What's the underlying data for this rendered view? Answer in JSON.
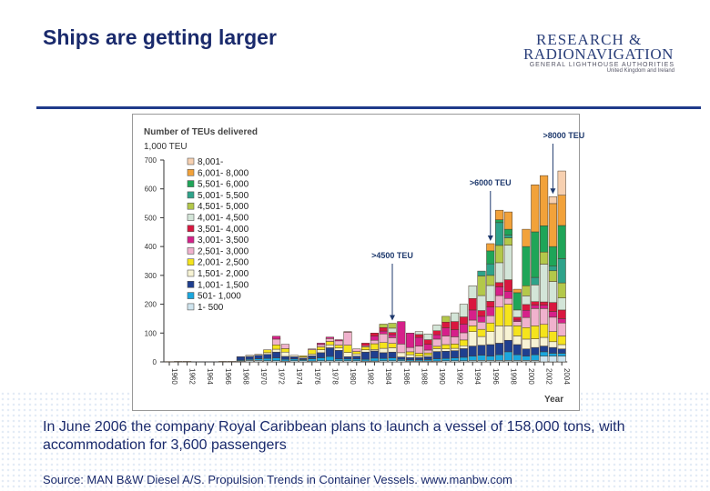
{
  "slide": {
    "title": "Ships are getting larger",
    "logo": {
      "line1": "RESEARCH &",
      "line2": "RADIONAVIGATION",
      "line3": "GENERAL LIGHTHOUSE AUTHORITIES",
      "line4": "United Kingdom and Ireland"
    },
    "body": "In June 2006 the company Royal Caribbean plans to launch a vessel of 158,000 tons, with accommodation for 3,600 passengers",
    "source": "Source: MAN B&W Diesel A/S.  Propulsion Trends in Container Vessels.  www.manbw.com"
  },
  "chart_data": {
    "type": "bar",
    "stacked": true,
    "title": "Number of TEUs delivered",
    "ylabel": "1,000 TEU",
    "xlabel": "Year",
    "ylim": [
      0,
      700
    ],
    "yticks": [
      0,
      100,
      200,
      300,
      400,
      500,
      600,
      700
    ],
    "xtick_labels": [
      "1960",
      "1962",
      "1964",
      "1966",
      "1968",
      "1970",
      "1972",
      "1974",
      "1976",
      "1978",
      "1980",
      "1982",
      "1984",
      "1986",
      "1988",
      "1990",
      "1992",
      "1994",
      "1996",
      "1998",
      "2000",
      "2002",
      "2004"
    ],
    "legend_position": "top-left",
    "grid": false,
    "years": [
      1960,
      1961,
      1962,
      1963,
      1964,
      1965,
      1966,
      1967,
      1968,
      1969,
      1970,
      1971,
      1972,
      1973,
      1974,
      1975,
      1976,
      1977,
      1978,
      1979,
      1980,
      1981,
      1982,
      1983,
      1984,
      1985,
      1986,
      1987,
      1988,
      1989,
      1990,
      1991,
      1992,
      1993,
      1994,
      1995,
      1996,
      1997,
      1998,
      1999,
      2000,
      2001,
      2002,
      2003,
      2004
    ],
    "series": [
      {
        "name": "1-   500",
        "color": "#cfe4ee",
        "values": [
          1,
          2,
          2,
          0,
          0,
          0,
          2,
          2,
          3,
          5,
          5,
          4,
          4,
          3,
          4,
          4,
          3,
          4,
          4,
          4,
          4,
          4,
          3,
          3,
          4,
          4,
          4,
          3,
          3,
          3,
          3,
          4,
          4,
          4,
          5,
          5,
          5,
          5,
          5,
          5,
          5,
          5,
          20,
          20,
          20
        ]
      },
      {
        "name": "501- 1,000",
        "color": "#1aa7de",
        "values": [
          0,
          0,
          0,
          0,
          0,
          0,
          0,
          0,
          3,
          4,
          6,
          8,
          10,
          6,
          6,
          4,
          8,
          10,
          15,
          6,
          6,
          6,
          6,
          10,
          8,
          10,
          5,
          4,
          4,
          5,
          8,
          8,
          10,
          12,
          15,
          18,
          15,
          20,
          30,
          20,
          15,
          20,
          15,
          10,
          10
        ]
      },
      {
        "name": "1,001- 1,500",
        "color": "#1f3f8f",
        "values": [
          0,
          0,
          0,
          0,
          0,
          0,
          0,
          0,
          12,
          10,
          12,
          14,
          20,
          10,
          8,
          5,
          10,
          18,
          30,
          30,
          8,
          10,
          25,
          25,
          20,
          20,
          8,
          8,
          8,
          10,
          25,
          25,
          25,
          30,
          35,
          35,
          40,
          40,
          40,
          35,
          25,
          25,
          20,
          20,
          15
        ]
      },
      {
        "name": "1,501- 2,000",
        "color": "#f7f3d4",
        "values": [
          0,
          0,
          0,
          0,
          0,
          0,
          0,
          0,
          0,
          4,
          3,
          6,
          10,
          15,
          5,
          4,
          6,
          10,
          10,
          8,
          15,
          8,
          8,
          5,
          15,
          15,
          15,
          10,
          5,
          5,
          10,
          8,
          8,
          10,
          50,
          30,
          45,
          60,
          50,
          30,
          34,
          30,
          30,
          20,
          15
        ]
      },
      {
        "name": "2,001- 2,500",
        "color": "#f5e41c",
        "values": [
          0,
          0,
          0,
          0,
          0,
          0,
          0,
          0,
          0,
          0,
          0,
          10,
          15,
          12,
          0,
          4,
          15,
          10,
          12,
          10,
          25,
          8,
          10,
          20,
          20,
          15,
          0,
          10,
          10,
          8,
          8,
          15,
          15,
          20,
          20,
          25,
          30,
          65,
          75,
          35,
          40,
          45,
          45,
          35,
          30
        ]
      },
      {
        "name": "2,501- 3,000",
        "color": "#f0b2cd",
        "values": [
          0,
          0,
          0,
          0,
          0,
          0,
          0,
          0,
          0,
          0,
          0,
          0,
          20,
          15,
          0,
          0,
          3,
          8,
          10,
          15,
          45,
          9,
          4,
          12,
          30,
          20,
          30,
          15,
          25,
          10,
          25,
          30,
          25,
          25,
          20,
          25,
          25,
          40,
          20,
          15,
          35,
          60,
          55,
          50,
          45
        ]
      },
      {
        "name": "3,001- 3,500",
        "color": "#d6208a",
        "values": [
          0,
          0,
          0,
          0,
          0,
          0,
          0,
          0,
          0,
          0,
          0,
          0,
          10,
          0,
          0,
          0,
          0,
          5,
          5,
          4,
          2,
          0,
          0,
          15,
          10,
          10,
          78,
          50,
          30,
          20,
          15,
          28,
          25,
          30,
          35,
          20,
          30,
          30,
          25,
          5,
          25,
          12,
          12,
          20,
          15
        ]
      },
      {
        "name": "3,501- 4,000",
        "color": "#d9173f",
        "values": [
          0,
          0,
          0,
          0,
          0,
          0,
          0,
          0,
          0,
          0,
          0,
          0,
          0,
          0,
          0,
          0,
          0,
          0,
          0,
          0,
          0,
          0,
          9,
          10,
          12,
          8,
          0,
          0,
          10,
          16,
          14,
          20,
          28,
          25,
          40,
          20,
          20,
          15,
          40,
          10,
          20,
          12,
          11,
          31,
          30
        ]
      },
      {
        "name": "4,001- 4,500",
        "color": "#d3e5d8",
        "values": [
          0,
          0,
          0,
          0,
          0,
          0,
          0,
          0,
          0,
          0,
          0,
          0,
          0,
          0,
          0,
          0,
          0,
          0,
          0,
          0,
          0,
          0,
          0,
          0,
          0,
          15,
          0,
          0,
          10,
          20,
          20,
          0,
          30,
          44,
          44,
          52,
          55,
          69,
          120,
          25,
          30,
          58,
          131,
          73,
          42
        ]
      },
      {
        "name": "4,501- 5,000",
        "color": "#b3c84a",
        "values": [
          0,
          0,
          0,
          0,
          0,
          0,
          0,
          0,
          0,
          0,
          0,
          0,
          0,
          0,
          0,
          0,
          0,
          0,
          0,
          0,
          0,
          0,
          0,
          0,
          12,
          17,
          0,
          0,
          0,
          0,
          0,
          20,
          0,
          0,
          0,
          68,
          35,
          60,
          25,
          0,
          35,
          0,
          42,
          37,
          52
        ]
      },
      {
        "name": "5,001- 5,500",
        "color": "#2ea38a",
        "values": [
          0,
          0,
          0,
          0,
          0,
          0,
          0,
          0,
          0,
          0,
          0,
          0,
          0,
          0,
          0,
          0,
          0,
          0,
          0,
          0,
          0,
          0,
          0,
          0,
          0,
          0,
          0,
          0,
          0,
          0,
          0,
          0,
          0,
          0,
          0,
          17,
          40,
          79,
          10,
          0,
          0,
          26,
          0,
          16,
          84
        ]
      },
      {
        "name": "5,501- 6,000",
        "color": "#1fa558",
        "values": [
          0,
          0,
          0,
          0,
          0,
          0,
          0,
          0,
          0,
          0,
          0,
          0,
          0,
          0,
          0,
          0,
          0,
          0,
          0,
          0,
          0,
          0,
          0,
          0,
          0,
          0,
          0,
          0,
          0,
          0,
          0,
          0,
          0,
          0,
          0,
          0,
          45,
          10,
          20,
          60,
          136,
          158,
          91,
          68,
          115
        ]
      },
      {
        "name": "6,001- 8,000",
        "color": "#f2a23a",
        "values": [
          0,
          0,
          0,
          0,
          0,
          0,
          0,
          0,
          0,
          0,
          0,
          0,
          0,
          0,
          0,
          0,
          0,
          0,
          0,
          0,
          0,
          0,
          0,
          0,
          0,
          0,
          0,
          0,
          0,
          0,
          0,
          0,
          0,
          0,
          0,
          0,
          25,
          33,
          60,
          12,
          60,
          163,
          174,
          149,
          105
        ]
      },
      {
        "name": "8,001-",
        "color": "#f7d0b0",
        "values": [
          0,
          0,
          0,
          0,
          0,
          0,
          0,
          0,
          0,
          0,
          0,
          0,
          0,
          0,
          0,
          0,
          0,
          0,
          0,
          0,
          0,
          0,
          0,
          0,
          0,
          0,
          0,
          0,
          0,
          0,
          0,
          0,
          0,
          0,
          0,
          0,
          0,
          0,
          0,
          0,
          0,
          0,
          0,
          24,
          84
        ]
      }
    ],
    "annotations": [
      {
        "text": ">4500 TEU",
        "year": 1985,
        "value": 134
      },
      {
        "text": ">6000 TEU",
        "year": 1996,
        "value": 410
      },
      {
        "text": ">8000 TEU",
        "year": 2003,
        "value": 573
      }
    ]
  }
}
